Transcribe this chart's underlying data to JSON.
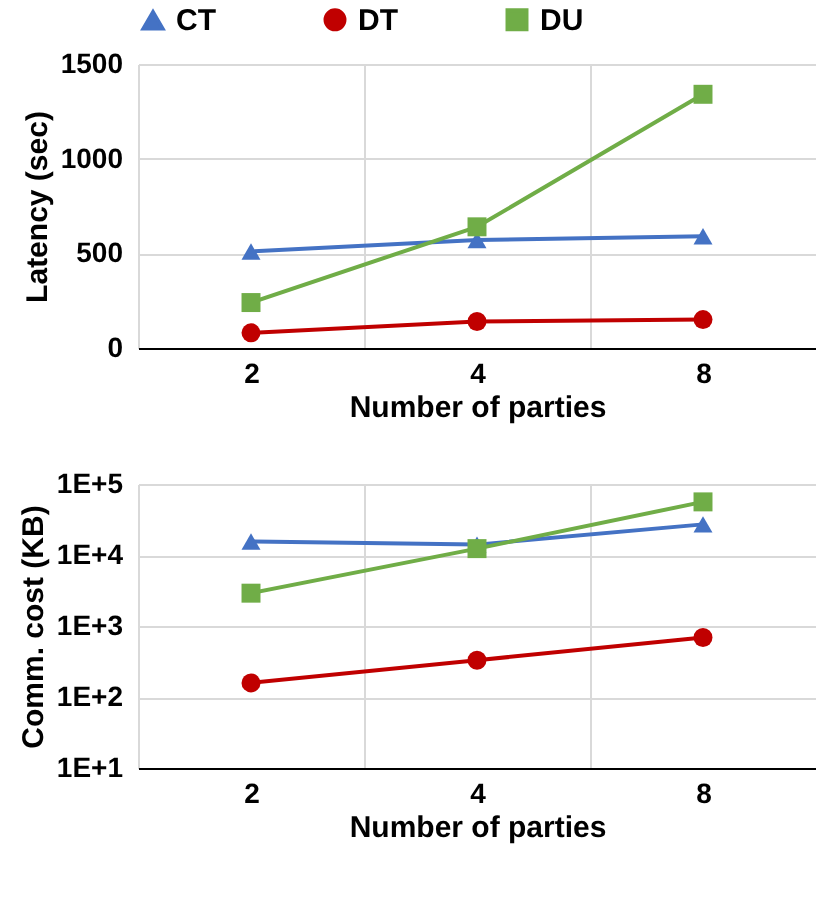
{
  "chart_data": [
    {
      "type": "line",
      "xlabel": "Number of parties",
      "ylabel": "Latency (sec)",
      "categories": [
        "2",
        "4",
        "8"
      ],
      "series": [
        {
          "name": "CT",
          "color": "#4472c4",
          "marker": "triangle",
          "values": [
            510,
            570,
            590
          ]
        },
        {
          "name": "DT",
          "color": "#c00000",
          "marker": "circle",
          "values": [
            80,
            140,
            150
          ]
        },
        {
          "name": "DU",
          "color": "#70ad47",
          "marker": "square",
          "values": [
            240,
            640,
            1340
          ]
        }
      ],
      "ylim": [
        0,
        1500
      ],
      "yticks": [
        0,
        500,
        1000,
        1500
      ],
      "grid": true,
      "legend": "top"
    },
    {
      "type": "line",
      "xlabel": "Number of parties",
      "ylabel": "Comm. cost (KB)",
      "categories": [
        "2",
        "4",
        "8"
      ],
      "series": [
        {
          "name": "CT",
          "color": "#4472c4",
          "marker": "triangle",
          "values": [
            15500,
            14000,
            27000
          ]
        },
        {
          "name": "DT",
          "color": "#c00000",
          "marker": "circle",
          "values": [
            158,
            330,
            690
          ]
        },
        {
          "name": "DU",
          "color": "#70ad47",
          "marker": "square",
          "values": [
            2900,
            12300,
            56000
          ]
        }
      ],
      "log": "y",
      "ylim": [
        10,
        100000
      ],
      "yticks": [
        {
          "value": 10,
          "label": "1E+1"
        },
        {
          "value": 100,
          "label": "1E+2"
        },
        {
          "value": 1000,
          "label": "1E+3"
        },
        {
          "value": 10000,
          "label": "1E+4"
        },
        {
          "value": 100000,
          "label": "1E+5"
        }
      ],
      "grid": true,
      "legend": "top"
    }
  ]
}
